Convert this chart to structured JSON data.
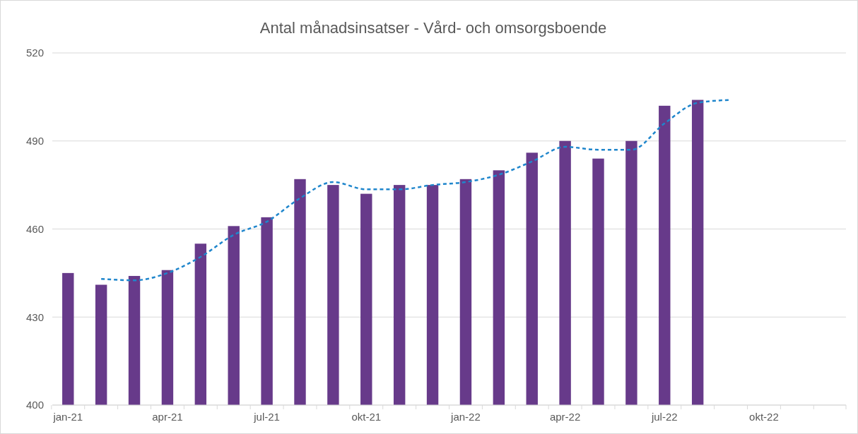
{
  "chart_data": {
    "type": "bar",
    "title": "Antal månadsinsatser - Vård- och omsorgsboende",
    "categories": [
      "jan-21",
      null,
      null,
      "apr-21",
      null,
      null,
      "jul-21",
      null,
      null,
      "okt-21",
      null,
      null,
      "jan-22",
      null,
      null,
      "apr-22",
      null,
      null,
      "jul-22",
      null,
      null,
      "okt-22",
      null,
      null
    ],
    "series": [
      {
        "color": "#673a8a",
        "values": [
          445,
          441,
          444,
          446,
          455,
          461,
          464,
          477,
          475,
          472,
          475,
          475,
          477,
          480,
          486,
          490,
          484,
          490,
          502,
          504,
          null,
          null,
          null,
          null
        ]
      },
      {
        "type": "line",
        "color": "#1f86cc",
        "line_style": "dashed",
        "marker": "none",
        "values": [
          null,
          443,
          442.5,
          445,
          450.5,
          458,
          462.5,
          470.5,
          476,
          473.5,
          473.5,
          475,
          476,
          478.5,
          483,
          488,
          487,
          487,
          496,
          503,
          504,
          null,
          null,
          null
        ]
      }
    ],
    "ylim": [
      400,
      520
    ],
    "yticks": [
      400,
      430,
      460,
      490,
      520
    ],
    "grid": "y"
  }
}
